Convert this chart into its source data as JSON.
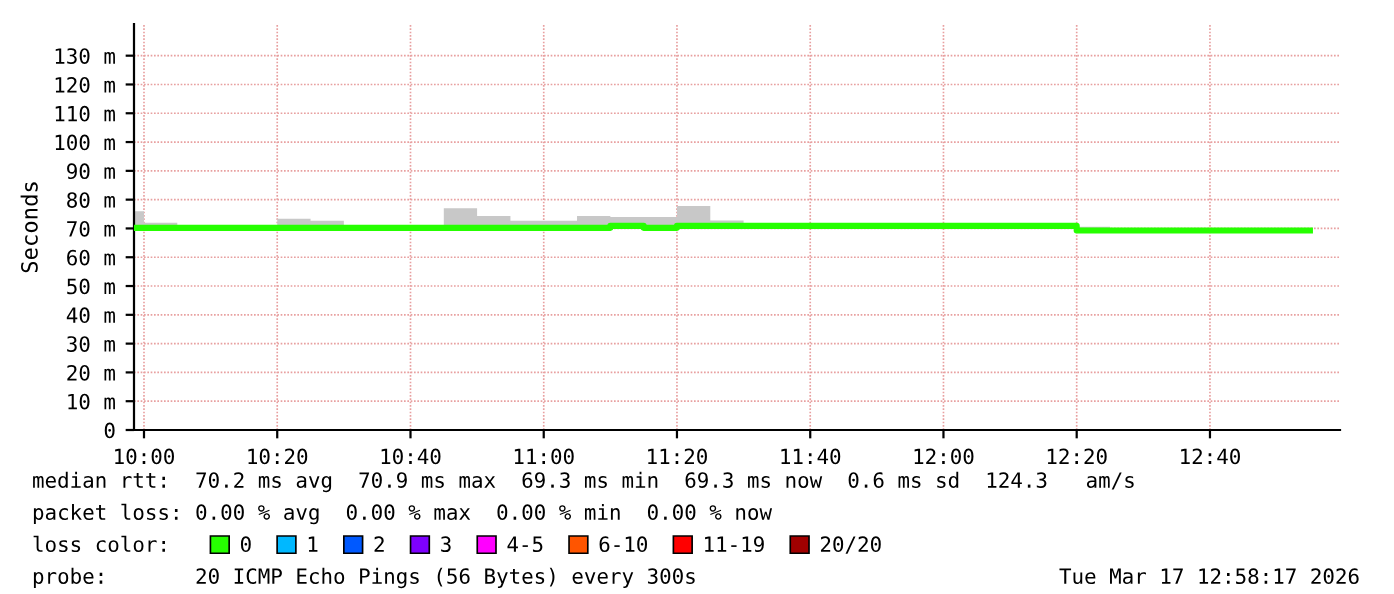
{
  "chart_data": {
    "type": "step",
    "ylabel": "Seconds",
    "x": [
      9.975,
      10,
      10.0833,
      10.1667,
      10.3333,
      10.4167,
      10.5,
      10.5833,
      10.75,
      10.8333,
      10.9167,
      11,
      11.0833,
      11.1667,
      11.25,
      11.3333,
      11.4167,
      11.5,
      12.3333,
      12.4167,
      12.9167
    ],
    "series": [
      {
        "name": "0",
        "color": "#26ff00",
        "values": [
          70.2,
          70.2,
          70.2,
          70.2,
          70.2,
          70.2,
          70.2,
          70.2,
          70.2,
          70.2,
          70.2,
          70.2,
          70.2,
          70.9,
          70.2,
          70.9,
          70.9,
          70.9,
          69.3,
          69.3,
          69.3
        ],
        "lower": [
          69.8,
          69.8,
          69.8,
          69.8,
          69.8,
          69.8,
          69.8,
          69.8,
          69.8,
          69.8,
          69.8,
          69.8,
          69.8,
          69.8,
          69.8,
          69.8,
          69.8,
          69.8,
          69,
          69,
          69
        ],
        "upper": [
          76,
          72,
          71,
          70.5,
          73.4,
          72.7,
          71,
          70.5,
          77,
          74.3,
          72.7,
          72.7,
          74.3,
          74,
          74,
          77.8,
          72.8,
          71.2,
          70.6,
          69.9,
          69.9
        ]
      },
      {
        "name": "1",
        "color": "#00b8ff",
        "values": [
          null,
          null,
          null,
          null,
          null,
          null,
          null,
          null,
          null,
          null,
          null,
          null,
          null,
          null,
          null,
          null,
          null,
          null,
          null,
          null,
          null
        ]
      },
      {
        "name": "2",
        "color": "#0059ff",
        "values": [
          null,
          null,
          null,
          null,
          null,
          null,
          null,
          null,
          null,
          null,
          null,
          null,
          null,
          null,
          null,
          null,
          null,
          null,
          null,
          null,
          null
        ]
      },
      {
        "name": "3",
        "color": "#7e00ff",
        "values": [
          null,
          null,
          null,
          null,
          null,
          null,
          null,
          null,
          null,
          null,
          null,
          null,
          null,
          null,
          null,
          null,
          null,
          null,
          null,
          null,
          null
        ]
      },
      {
        "name": "4-5",
        "color": "#ff00ff",
        "values": [
          null,
          null,
          null,
          null,
          null,
          null,
          null,
          null,
          null,
          null,
          null,
          null,
          null,
          null,
          null,
          null,
          null,
          null,
          null,
          null,
          null
        ]
      },
      {
        "name": "6-10",
        "color": "#ff5500",
        "values": [
          null,
          null,
          null,
          null,
          null,
          null,
          null,
          null,
          null,
          null,
          null,
          null,
          null,
          null,
          null,
          null,
          null,
          null,
          null,
          null,
          null
        ]
      },
      {
        "name": "11-19",
        "color": "#ff0000",
        "values": [
          null,
          null,
          null,
          null,
          null,
          null,
          null,
          null,
          null,
          null,
          null,
          null,
          null,
          null,
          null,
          null,
          null,
          null,
          null,
          null,
          null
        ]
      },
      {
        "name": "20/20",
        "color": "#a10000",
        "values": [
          null,
          null,
          null,
          null,
          null,
          null,
          null,
          null,
          null,
          null,
          null,
          null,
          null,
          null,
          null,
          null,
          null,
          null,
          null,
          null,
          null
        ]
      }
    ],
    "xlim": [
      9.975,
      12.992
    ],
    "xticks": [
      {
        "value": 10,
        "label": "10:00"
      },
      {
        "value": 10.3333,
        "label": "10:20"
      },
      {
        "value": 10.6667,
        "label": "10:40"
      },
      {
        "value": 11,
        "label": "11:00"
      },
      {
        "value": 11.3333,
        "label": "11:20"
      },
      {
        "value": 11.6667,
        "label": "11:40"
      },
      {
        "value": 12,
        "label": "12:00"
      },
      {
        "value": 12.3333,
        "label": "12:20"
      },
      {
        "value": 12.6667,
        "label": "12:40"
      }
    ],
    "ylim": [
      0,
      141
    ],
    "yticks": [
      0,
      {
        "value": 10,
        "label": "10 m"
      },
      {
        "value": 20,
        "label": "20 m"
      },
      {
        "value": 30,
        "label": "30 m"
      },
      {
        "value": 40,
        "label": "40 m"
      },
      {
        "value": 50,
        "label": "50 m"
      },
      {
        "value": 60,
        "label": "60 m"
      },
      {
        "value": 70,
        "label": "70 m"
      },
      {
        "value": 80,
        "label": "80 m"
      },
      {
        "value": 90,
        "label": "90 m"
      },
      {
        "value": 100,
        "label": "100 m"
      },
      {
        "value": 110,
        "label": "110 m"
      },
      {
        "value": 120,
        "label": "120 m"
      },
      {
        "value": 130,
        "label": "130 m"
      }
    ],
    "grid": true,
    "legend": "bottom",
    "legend_title": "loss color:",
    "annotations": [
      "median rtt:  70.2 ms avg  70.9 ms max  69.3 ms min  69.3 ms now  0.6 ms sd  124.3   am/s",
      "packet loss: 0.00 % avg  0.00 % max  0.00 % min  0.00 % now",
      "probe:       20 ICMP Echo Pings (56 Bytes) every 300s",
      "Tue Mar 17 12:58:17 2026"
    ]
  }
}
